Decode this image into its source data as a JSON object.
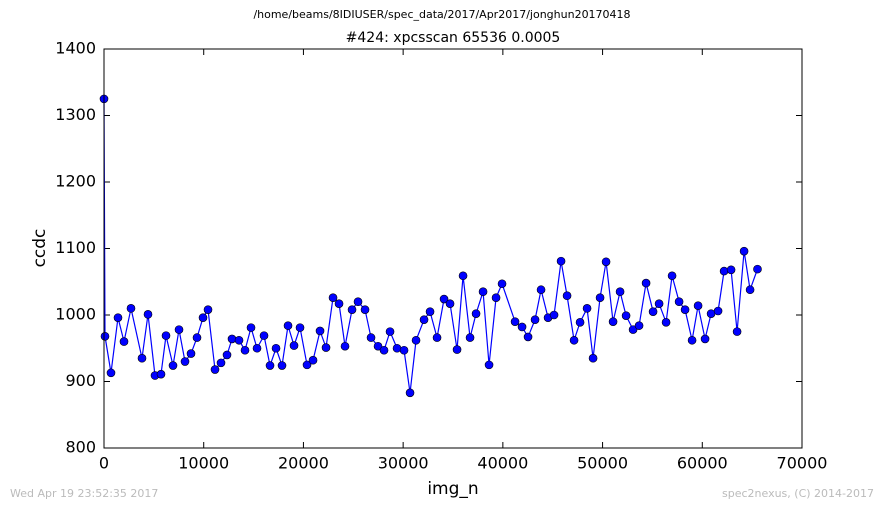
{
  "chart_data": {
    "type": "line",
    "suptitle": "/home/beams/8IDIUSER/spec_data/2017/Apr2017/jonghun20170418",
    "title": "#424: xpcsscan 65536 0.0005",
    "xlabel": "img_n",
    "ylabel": "ccdc",
    "footer_left": "Wed Apr 19 23:52:35 2017",
    "footer_right": "spec2nexus, (C) 2014-2017",
    "x": [
      0,
      100,
      702,
      1404,
      2006,
      2708,
      3811,
      4413,
      5115,
      5717,
      6219,
      6921,
      7523,
      8124,
      8726,
      9328,
      9930,
      10431,
      11133,
      11735,
      12337,
      12838,
      13541,
      14142,
      14744,
      15346,
      16048,
      16650,
      17252,
      17853,
      18455,
      19057,
      19659,
      20361,
      20963,
      21665,
      22267,
      22969,
      23571,
      24172,
      24874,
      25476,
      26178,
      26780,
      27482,
      28084,
      28686,
      29388,
      30090,
      30692,
      31294,
      32096,
      32698,
      33400,
      34102,
      34704,
      35406,
      36008,
      36710,
      37312,
      38014,
      38616,
      39318,
      39919,
      41223,
      41925,
      42527,
      43229,
      43831,
      44533,
      45135,
      45837,
      46439,
      47141,
      47743,
      48445,
      49047,
      49749,
      50351,
      51053,
      51755,
      52357,
      53059,
      53661,
      54363,
      55065,
      55667,
      56369,
      56970,
      57673,
      58274,
      58976,
      59578,
      60280,
      60882,
      61584,
      62186,
      62888,
      63490,
      64192,
      64794,
      65536
    ],
    "series": [
      {
        "name": "ccdc",
        "color": "#0000ff",
        "values": [
          1325,
          968,
          913,
          996,
          960,
          1010,
          935,
          1001,
          909,
          911,
          969,
          924,
          978,
          930,
          942,
          966,
          996,
          1008,
          918,
          928,
          940,
          964,
          962,
          947,
          981,
          950,
          969,
          924,
          950,
          924,
          984,
          954,
          981,
          925,
          932,
          976,
          951,
          1026,
          1017,
          953,
          1008,
          1020,
          1008,
          966,
          953,
          947,
          975,
          950,
          947,
          883,
          962,
          993,
          1005,
          966,
          1024,
          1017,
          948,
          1059,
          966,
          1002,
          1035,
          925,
          1026,
          1047,
          990,
          982,
          967,
          993,
          1038,
          996,
          1000,
          1081,
          1029,
          962,
          989,
          1010,
          935,
          1026,
          1080,
          990,
          1035,
          999,
          978,
          984,
          1048,
          1005,
          1017,
          989,
          1059,
          1020,
          1008,
          962,
          1014,
          964,
          1002,
          1006,
          1066,
          1068,
          975,
          1096,
          1038,
          1069
        ]
      }
    ],
    "xlim": [
      0,
      70000
    ],
    "xticks": [
      0,
      10000,
      20000,
      30000,
      40000,
      50000,
      60000,
      70000
    ],
    "ylim": [
      800,
      1400
    ],
    "yticks": [
      800,
      900,
      1000,
      1100,
      1200,
      1300,
      1400
    ]
  }
}
